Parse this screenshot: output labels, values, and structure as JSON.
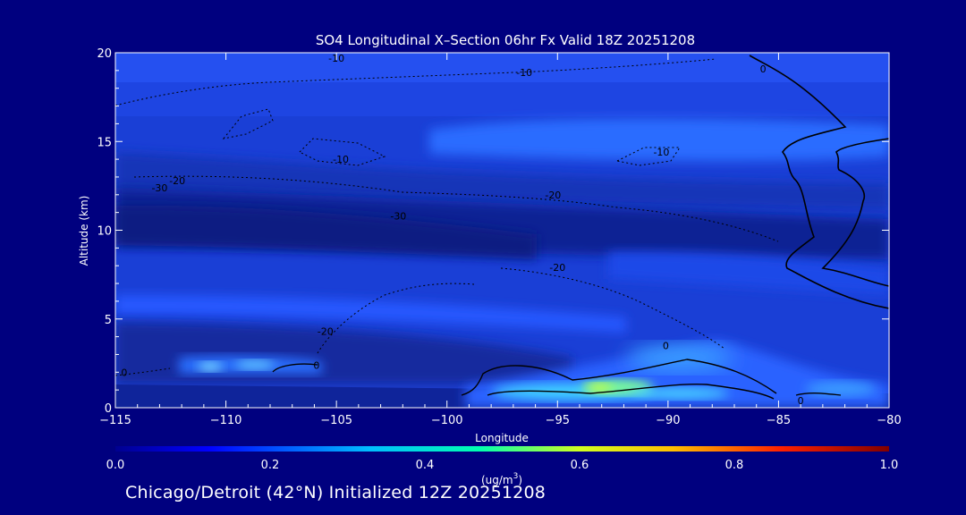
{
  "title": "SO4 Longitudinal X–Section 06hr  Fx Valid 18Z 20251208",
  "footer": "Chicago/Detroit (42°N) Initialized 12Z 20251208",
  "colors": {
    "background": "#00007f",
    "text": "#ffffff",
    "contour": "#000000"
  },
  "chart_data": {
    "type": "heatmap",
    "title": "SO4 Longitudinal X–Section 06hr  Fx Valid 18Z 20251208",
    "xlabel": "Longitude",
    "ylabel": "Altitude (km)",
    "xlim": [
      -115,
      -80
    ],
    "ylim": [
      0,
      20
    ],
    "x_ticks": [
      -115,
      -110,
      -105,
      -100,
      -95,
      -90,
      -85,
      -80
    ],
    "x_tick_labels": [
      "−115",
      "−110",
      "−105",
      "−100",
      "−95",
      "−90",
      "−85",
      "−80"
    ],
    "y_ticks": [
      0,
      5,
      10,
      15,
      20
    ],
    "y_tick_labels": [
      "0",
      "5",
      "10",
      "15",
      "20"
    ],
    "colorbar": {
      "range": [
        0.0,
        1.0
      ],
      "ticks": [
        "0.0",
        "0.2",
        "0.4",
        "0.6",
        "0.8",
        "1.0"
      ],
      "units_label": "(ug/m",
      "units_sup": "3",
      "units_close": ")"
    },
    "contour_labels": [
      {
        "text": "-10",
        "lon": -105,
        "alt": 19.7
      },
      {
        "text": "-10",
        "lon": -96.5,
        "alt": 18.9
      },
      {
        "text": "-10",
        "lon": -104.8,
        "alt": 14.0
      },
      {
        "text": "-10",
        "lon": -90.3,
        "alt": 14.4
      },
      {
        "text": "-20",
        "lon": -112.2,
        "alt": 12.8
      },
      {
        "text": "-30",
        "lon": -113.0,
        "alt": 12.4
      },
      {
        "text": "-20",
        "lon": -95.2,
        "alt": 12.0
      },
      {
        "text": "-30",
        "lon": -102.2,
        "alt": 10.8
      },
      {
        "text": "-20",
        "lon": -95.0,
        "alt": 7.9
      },
      {
        "text": "-20",
        "lon": -105.5,
        "alt": 4.3
      },
      {
        "text": "0",
        "lon": -90.1,
        "alt": 3.5
      },
      {
        "text": "0",
        "lon": -105.9,
        "alt": 2.4
      },
      {
        "text": "0",
        "lon": -114.6,
        "alt": 2.0
      },
      {
        "text": "0",
        "lon": -84.0,
        "alt": 0.4
      },
      {
        "text": "0",
        "lon": -85.7,
        "alt": 19.1
      }
    ]
  }
}
